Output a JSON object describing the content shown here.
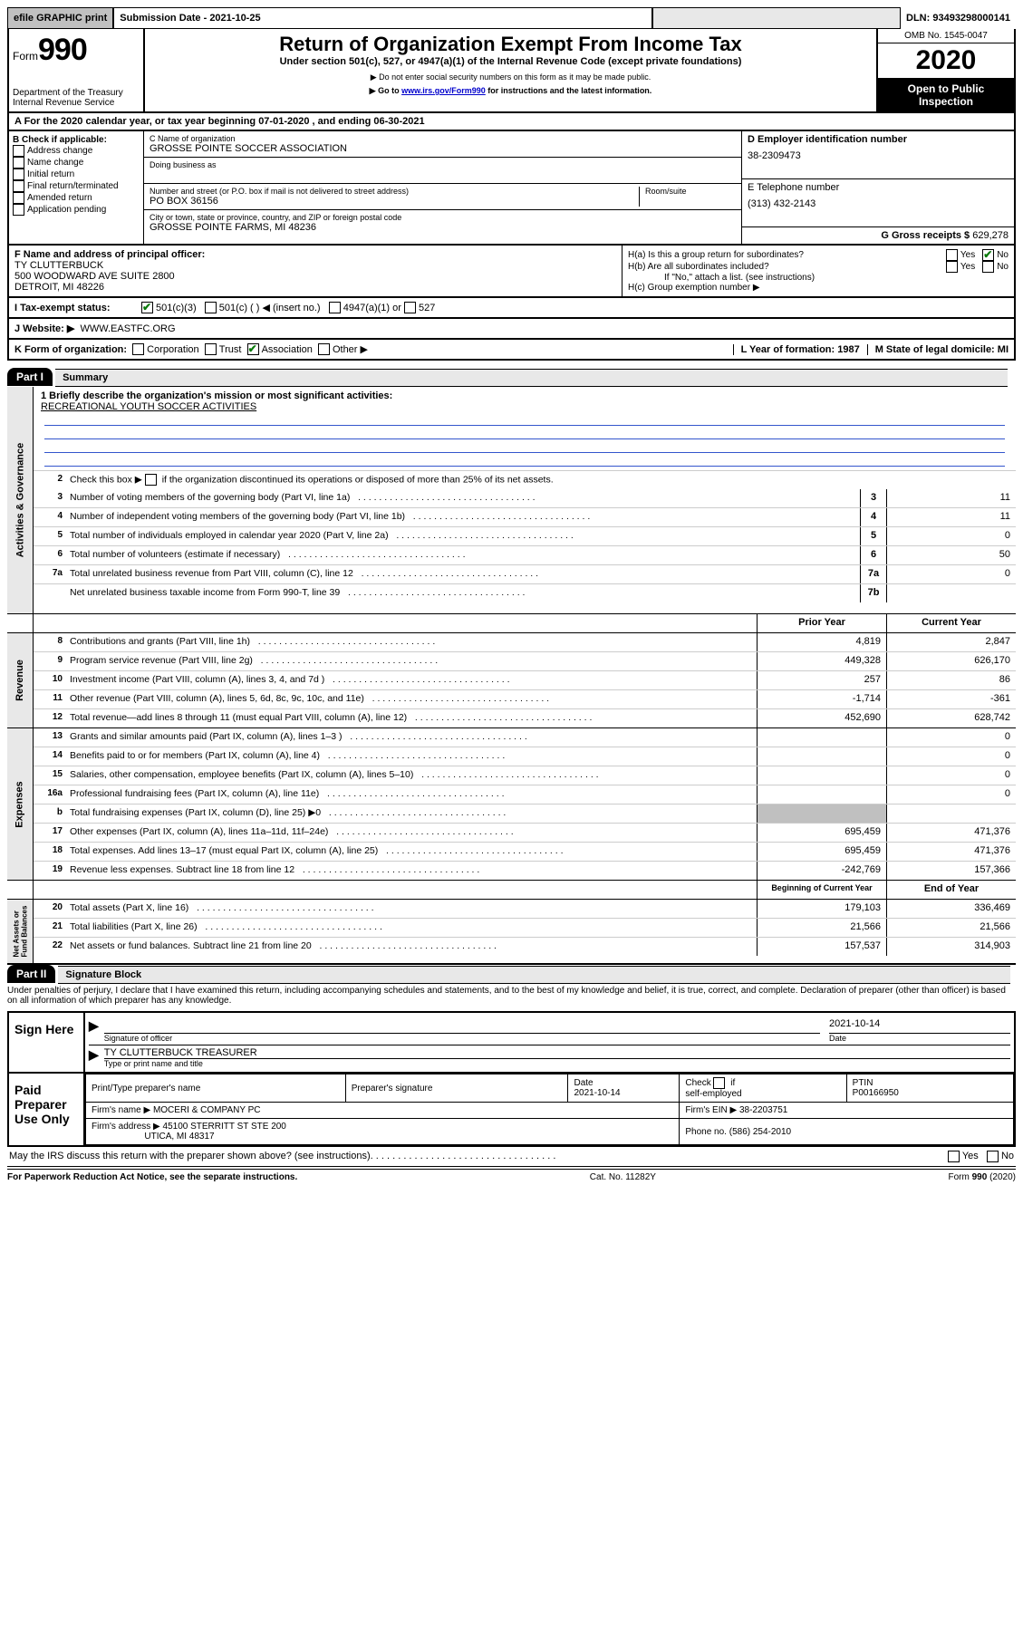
{
  "header": {
    "efile": "efile GRAPHIC print",
    "sub_date_label": "Submission Date - 2021-10-25",
    "dln_label": "DLN: 93493298000141"
  },
  "topblock": {
    "form_label": "Form",
    "form_num": "990",
    "dept": "Department of the Treasury",
    "irs": "Internal Revenue Service",
    "title": "Return of Organization Exempt From Income Tax",
    "subtitle": "Under section 501(c), 527, or 4947(a)(1) of the Internal Revenue Code (except private foundations)",
    "note1": "▶ Do not enter social security numbers on this form as it may be made public.",
    "note2_pre": "▶ Go to ",
    "note2_link": "www.irs.gov/Form990",
    "note2_post": " for instructions and the latest information.",
    "omb": "OMB No. 1545-0047",
    "year": "2020",
    "open": "Open to Public Inspection"
  },
  "rowA": "A For the 2020 calendar year, or tax year beginning 07-01-2020    , and ending 06-30-2021",
  "B": {
    "label": "B Check if applicable:",
    "items": [
      "Address change",
      "Name change",
      "Initial return",
      "Final return/terminated",
      "Amended return",
      "Application pending"
    ]
  },
  "C": {
    "name_label": "C Name of organization",
    "name": "GROSSE POINTE SOCCER ASSOCIATION",
    "dba_label": "Doing business as",
    "street_label": "Number and street (or P.O. box if mail is not delivered to street address)",
    "room_label": "Room/suite",
    "street": "PO BOX 36156",
    "city_label": "City or town, state or province, country, and ZIP or foreign postal code",
    "city": "GROSSE POINTE FARMS, MI  48236"
  },
  "D": {
    "label": "D Employer identification number",
    "val": "38-2309473"
  },
  "E": {
    "label": "E Telephone number",
    "val": "(313) 432-2143"
  },
  "G": {
    "label": "G Gross receipts $",
    "val": "629,278"
  },
  "F": {
    "label": "F  Name and address of principal officer:",
    "name": "TY CLUTTERBUCK",
    "addr1": "500 WOODWARD AVE SUITE 2800",
    "addr2": "DETROIT, MI  48226"
  },
  "H": {
    "a": "H(a)  Is this a group return for subordinates?",
    "b": "H(b)  Are all subordinates included?",
    "b_note": "If \"No,\" attach a list. (see instructions)",
    "c": "H(c)  Group exemption number ▶"
  },
  "I": {
    "label": "I   Tax-exempt status:",
    "opt1": "501(c)(3)",
    "opt2": "501(c) (   ) ◀ (insert no.)",
    "opt3": "4947(a)(1) or",
    "opt4": "527"
  },
  "J": {
    "label": "J   Website: ▶",
    "val": "WWW.EASTFC.ORG"
  },
  "K": {
    "label": "K Form of organization:",
    "opts": [
      "Corporation",
      "Trust",
      "Association",
      "Other ▶"
    ],
    "L": "L Year of formation: 1987",
    "M": "M State of legal domicile: MI"
  },
  "part1": {
    "hdr": "Part I",
    "title": "Summary",
    "line1_label": "1  Briefly describe the organization's mission or most significant activities:",
    "line1_val": "RECREATIONAL YOUTH SOCCER ACTIVITIES",
    "line2": "Check this box ▶        if the organization discontinued its operations or disposed of more than 25% of its net assets.",
    "lines_single": [
      {
        "n": "3",
        "d": "Number of voting members of the governing body (Part VI, line 1a)",
        "box": "3",
        "v": "11"
      },
      {
        "n": "4",
        "d": "Number of independent voting members of the governing body (Part VI, line 1b)",
        "box": "4",
        "v": "11"
      },
      {
        "n": "5",
        "d": "Total number of individuals employed in calendar year 2020 (Part V, line 2a)",
        "box": "5",
        "v": "0"
      },
      {
        "n": "6",
        "d": "Total number of volunteers (estimate if necessary)",
        "box": "6",
        "v": "50"
      },
      {
        "n": "7a",
        "d": "Total unrelated business revenue from Part VIII, column (C), line 12",
        "box": "7a",
        "v": "0"
      },
      {
        "n": "",
        "d": "Net unrelated business taxable income from Form 990-T, line 39",
        "box": "7b",
        "v": ""
      }
    ],
    "col_prior": "Prior Year",
    "col_current": "Current Year",
    "revenue": [
      {
        "n": "8",
        "d": "Contributions and grants (Part VIII, line 1h)",
        "p": "4,819",
        "c": "2,847"
      },
      {
        "n": "9",
        "d": "Program service revenue (Part VIII, line 2g)",
        "p": "449,328",
        "c": "626,170"
      },
      {
        "n": "10",
        "d": "Investment income (Part VIII, column (A), lines 3, 4, and 7d )",
        "p": "257",
        "c": "86"
      },
      {
        "n": "11",
        "d": "Other revenue (Part VIII, column (A), lines 5, 6d, 8c, 9c, 10c, and 11e)",
        "p": "-1,714",
        "c": "-361"
      },
      {
        "n": "12",
        "d": "Total revenue—add lines 8 through 11 (must equal Part VIII, column (A), line 12)",
        "p": "452,690",
        "c": "628,742"
      }
    ],
    "expenses": [
      {
        "n": "13",
        "d": "Grants and similar amounts paid (Part IX, column (A), lines 1–3 )",
        "p": "",
        "c": "0"
      },
      {
        "n": "14",
        "d": "Benefits paid to or for members (Part IX, column (A), line 4)",
        "p": "",
        "c": "0"
      },
      {
        "n": "15",
        "d": "Salaries, other compensation, employee benefits (Part IX, column (A), lines 5–10)",
        "p": "",
        "c": "0"
      },
      {
        "n": "16a",
        "d": "Professional fundraising fees (Part IX, column (A), line 11e)",
        "p": "",
        "c": "0"
      },
      {
        "n": "b",
        "d": "Total fundraising expenses (Part IX, column (D), line 25) ▶0",
        "p": "SHADE",
        "c": "SHADE"
      },
      {
        "n": "17",
        "d": "Other expenses (Part IX, column (A), lines 11a–11d, 11f–24e)",
        "p": "695,459",
        "c": "471,376"
      },
      {
        "n": "18",
        "d": "Total expenses. Add lines 13–17 (must equal Part IX, column (A), line 25)",
        "p": "695,459",
        "c": "471,376"
      },
      {
        "n": "19",
        "d": "Revenue less expenses. Subtract line 18 from line 12",
        "p": "-242,769",
        "c": "157,366"
      }
    ],
    "col_begin": "Beginning of Current Year",
    "col_end": "End of Year",
    "netassets": [
      {
        "n": "20",
        "d": "Total assets (Part X, line 16)",
        "p": "179,103",
        "c": "336,469"
      },
      {
        "n": "21",
        "d": "Total liabilities (Part X, line 26)",
        "p": "21,566",
        "c": "21,566"
      },
      {
        "n": "22",
        "d": "Net assets or fund balances. Subtract line 21 from line 20",
        "p": "157,537",
        "c": "314,903"
      }
    ]
  },
  "part2": {
    "hdr": "Part II",
    "title": "Signature Block",
    "decl": "Under penalties of perjury, I declare that I have examined this return, including accompanying schedules and statements, and to the best of my knowledge and belief, it is true, correct, and complete. Declaration of preparer (other than officer) is based on all information of which preparer has any knowledge.",
    "sign_here": "Sign Here",
    "sig_officer": "Signature of officer",
    "sig_date": "2021-10-14",
    "date_label": "Date",
    "officer_name": "TY CLUTTERBUCK  TREASURER",
    "type_name": "Type or print name and title",
    "paid_prep": "Paid Preparer Use Only",
    "prep_name_label": "Print/Type preparer's name",
    "prep_sig_label": "Preparer's signature",
    "prep_date": "2021-10-14",
    "check_self": "Check         if self-employed",
    "ptin_label": "PTIN",
    "ptin": "P00166950",
    "firm_name_label": "Firm's name    ▶",
    "firm_name": "MOCERI & COMPANY PC",
    "firm_ein_label": "Firm's EIN ▶",
    "firm_ein": "38-2203751",
    "firm_addr_label": "Firm's address ▶",
    "firm_addr1": "45100 STERRITT ST STE 200",
    "firm_addr2": "UTICA, MI  48317",
    "phone_label": "Phone no.",
    "phone": "(586) 254-2010",
    "discuss": "May the IRS discuss this return with the preparer shown above? (see instructions)"
  },
  "footer": {
    "left": "For Paperwork Reduction Act Notice, see the separate instructions.",
    "mid": "Cat. No. 11282Y",
    "right": "Form 990 (2020)"
  }
}
